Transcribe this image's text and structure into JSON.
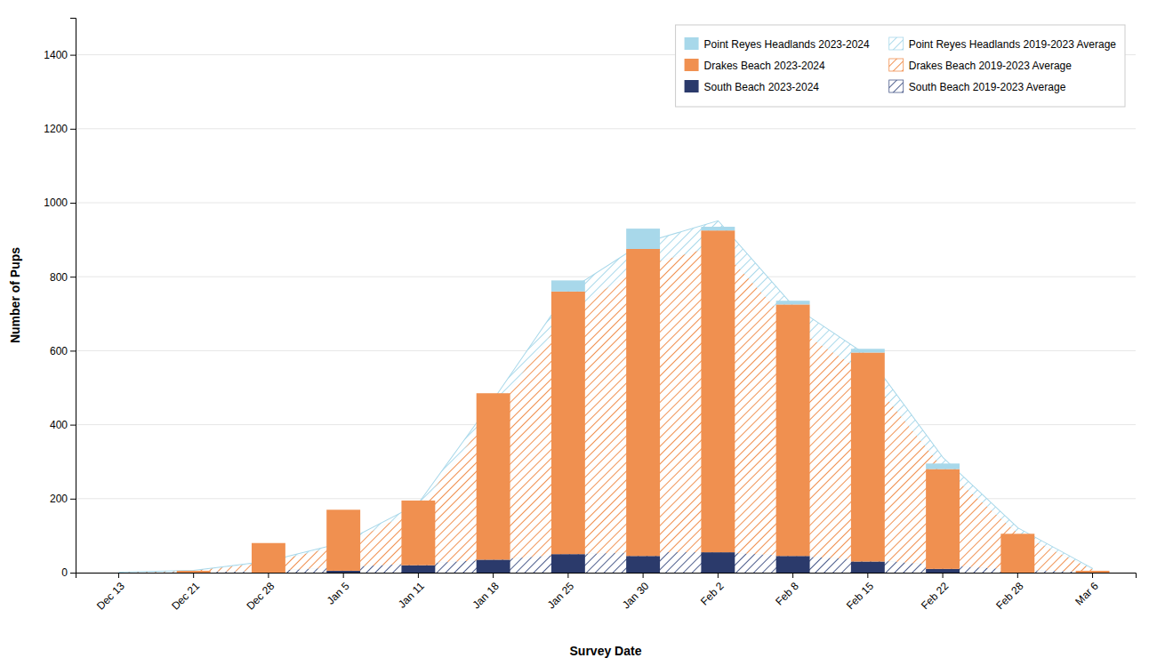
{
  "chart_data": {
    "type": "bar",
    "stacked": true,
    "x_label": "Survey Date",
    "y_label": "Number of Pups",
    "categories": [
      "Dec 13",
      "Dec 21",
      "Dec 28",
      "Jan 5",
      "Jan 11",
      "Jan 18",
      "Jan 25",
      "Jan 30",
      "Feb 2",
      "Feb 8",
      "Feb 15",
      "Feb 22",
      "Feb 28",
      "Mar 6"
    ],
    "series": [
      {
        "name": "Point Reyes Headlands 2023-2024",
        "type": "bar",
        "color": "#a8d8ea",
        "values": [
          0,
          0,
          0,
          0,
          0,
          0,
          30,
          55,
          10,
          10,
          10,
          15,
          0,
          0
        ]
      },
      {
        "name": "Point Reyes Headlands 2019-2023 Average",
        "type": "area",
        "color": "#a8d8ea",
        "values": [
          0,
          0,
          2,
          5,
          12,
          30,
          55,
          60,
          65,
          55,
          50,
          27,
          13,
          1
        ]
      },
      {
        "name": "Drakes Beach 2023-2024",
        "type": "bar",
        "color": "#f09050",
        "values": [
          0,
          5,
          80,
          165,
          175,
          450,
          710,
          830,
          870,
          680,
          565,
          270,
          105,
          5
        ]
      },
      {
        "name": "Drakes Beach 2019-2023 Average",
        "type": "area",
        "color": "#f09050",
        "values": [
          0,
          3,
          23,
          60,
          148,
          400,
          655,
          775,
          830,
          620,
          500,
          263,
          99,
          7
        ]
      },
      {
        "name": "South Beach 2023-2024",
        "type": "bar",
        "color": "#2b3a6b",
        "values": [
          0,
          0,
          0,
          5,
          20,
          35,
          50,
          45,
          55,
          45,
          30,
          10,
          0,
          0
        ]
      },
      {
        "name": "South Beach 2019-2023 Average",
        "type": "area",
        "color": "#4a5a8a",
        "values": [
          0,
          2,
          5,
          15,
          25,
          35,
          50,
          55,
          55,
          45,
          35,
          20,
          8,
          2
        ]
      },
      {
        "type": "line",
        "color": "#a8d8ea",
        "values": [
          0,
          5,
          30,
          80,
          185,
          465,
          760,
          890,
          950,
          720,
          585,
          310,
          120,
          10
        ]
      }
    ],
    "ylim": [
      0,
      1500
    ],
    "yticks": [
      0,
      200,
      400,
      600,
      800,
      1000,
      1200,
      1400
    ],
    "grid": true,
    "legend": "upper right"
  }
}
